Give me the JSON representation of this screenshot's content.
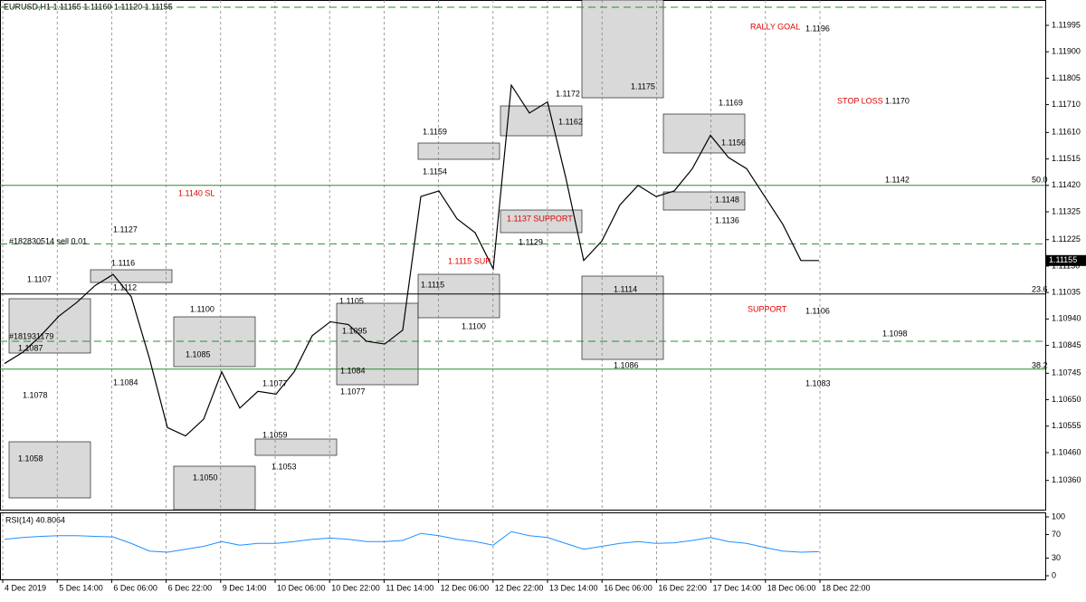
{
  "chart_data": {
    "type": "line",
    "title": "EURUSD,H1  1.11155 1.11160 1.11120 1.11155",
    "current_price": "1.11155",
    "ylim": [
      1.10255,
      1.12086
    ],
    "yticks": [
      1.11995,
      1.11805,
      {
        "value": 1.1171,
        "label": "1.11710"
      },
      {
        "value": 1.1161,
        "label": "1.11610"
      },
      1.11515,
      {
        "value": 1.1142,
        "label": "1.11420"
      },
      1.11325,
      1.11225,
      {
        "value": 1.1113,
        "label": "1.11130"
      },
      1.11035,
      {
        "value": 1.1094,
        "label": "1.10940"
      },
      1.10845,
      1.10745,
      {
        "value": 1.1065,
        "label": "1.10650"
      },
      1.10555,
      {
        "value": 1.1046,
        "label": "1.10460"
      },
      {
        "value": 1.1036,
        "label": "1.10360"
      },
      {
        "value": 1.119,
        "label": "1.11900"
      }
    ],
    "categories": [
      "4 Dec 2019",
      "5 Dec 14:00",
      "6 Dec 06:00",
      "6 Dec 22:00",
      "9 Dec 14:00",
      "10 Dec 06:00",
      "10 Dec 22:00",
      "11 Dec 14:00",
      "12 Dec 06:00",
      "12 Dec 22:00",
      "13 Dec 14:00",
      "16 Dec 06:00",
      "16 Dec 22:00",
      "17 Dec 14:00",
      "18 Dec 06:00",
      "18 Dec 22:00"
    ],
    "grid": true,
    "price": {
      "color": "#000000",
      "values": [
        1.1078,
        1.1082,
        1.1088,
        1.1095,
        1.11,
        1.1106,
        1.111,
        1.1102,
        1.108,
        1.1055,
        1.1052,
        1.1058,
        1.1075,
        1.1062,
        1.1068,
        1.1067,
        1.1075,
        1.1088,
        1.1093,
        1.1092,
        1.1086,
        1.1085,
        1.109,
        1.1138,
        1.114,
        1.113,
        1.1125,
        1.1112,
        1.1178,
        1.1168,
        1.1172,
        1.1145,
        1.1115,
        1.1122,
        1.1135,
        1.1142,
        1.1138,
        1.114,
        1.1148,
        1.116,
        1.1152,
        1.1148,
        1.1138,
        1.1128,
        1.1115,
        1.1115
      ]
    },
    "levels": [
      {
        "value": 1.1206,
        "style": "dashed",
        "color": "#2e8b2e"
      },
      {
        "value": 1.1142,
        "style": "solid",
        "color": "#2e8b2e"
      },
      {
        "value": 1.1121,
        "style": "dashed",
        "color": "#2e8b2e"
      },
      {
        "value": 1.1103,
        "style": "solid",
        "color": "#000000"
      },
      {
        "value": 1.1086,
        "style": "dashed",
        "color": "#2e8b2e"
      },
      {
        "value": 1.1076,
        "style": "solid",
        "color": "#2e8b2e"
      }
    ],
    "annotations": [
      "1.1127",
      "1.1116",
      "#182830514 sell 0.01",
      "1.1107",
      "1.1112",
      "#181931179",
      "1.1087",
      "1.1078",
      "1.1084",
      "1.1058",
      "1.1140 SL",
      "1.1100",
      "1.1085",
      "1.1050",
      "1.1077",
      "1.1059",
      "1.1053",
      "1.1105",
      "1.1095",
      "1.1084",
      "1.1077",
      "1.1159",
      "1.1154",
      "1.1115",
      "1.1115 SUP",
      "1.1100",
      "1.1137 SUPPORT",
      "1.1129",
      "1.1172",
      "1.1162",
      "1.1175",
      "1.1114",
      "1.1086",
      "1.1169",
      "1.1156",
      "1.1148",
      "1.1136",
      "RALLY GOAL",
      "1.1196",
      "STOP LOSS",
      "1.1170",
      "1.1142",
      "50.0",
      "23.6",
      "SUPPORT",
      "1.1106",
      "1.1098",
      "38.2",
      "1.1083"
    ],
    "rsi": {
      "label": "RSI(14) 40.8064",
      "color": "#1e90ff",
      "ylim": [
        0,
        100
      ],
      "yticks": [
        100,
        70,
        30,
        0
      ],
      "values": [
        62,
        65,
        67,
        68,
        68,
        67,
        66,
        55,
        42,
        40,
        45,
        50,
        58,
        52,
        55,
        55,
        58,
        62,
        64,
        62,
        58,
        58,
        60,
        72,
        68,
        62,
        58,
        52,
        75,
        68,
        65,
        55,
        45,
        50,
        55,
        58,
        55,
        56,
        60,
        65,
        58,
        55,
        48,
        42,
        40,
        41
      ]
    }
  }
}
